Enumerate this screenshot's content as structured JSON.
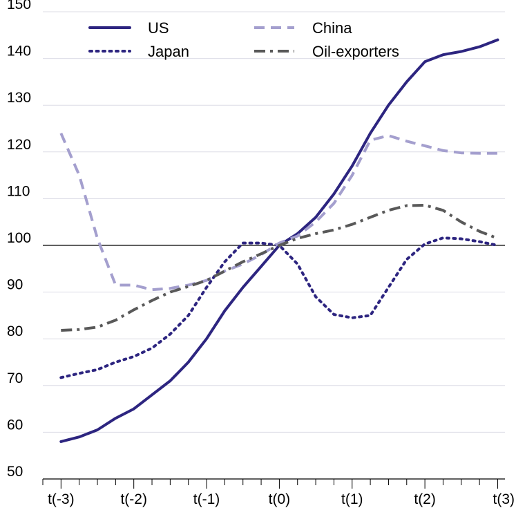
{
  "chart_data": {
    "type": "line",
    "x": [
      -3.0,
      -2.75,
      -2.5,
      -2.25,
      -2.0,
      -1.75,
      -1.5,
      -1.25,
      -1.0,
      -0.75,
      -0.5,
      -0.25,
      0.0,
      0.25,
      0.5,
      0.75,
      1.0,
      1.25,
      1.5,
      1.75,
      2.0,
      2.25,
      2.5,
      2.75,
      3.0
    ],
    "x_tick_values": [
      -3,
      -2,
      -1,
      0,
      1,
      2,
      3
    ],
    "x_tick_labels": [
      "t(-3)",
      "t(-2)",
      "t(-1)",
      "t(0)",
      "t(1)",
      "t(2)",
      "t(3)"
    ],
    "y_ticks": [
      50,
      60,
      70,
      80,
      90,
      100,
      110,
      120,
      130,
      140,
      150
    ],
    "ylim": [
      50,
      150
    ],
    "xlim": [
      -3.25,
      3.1
    ],
    "reference_line": 100,
    "grid": true,
    "legend_position": "top",
    "title": "",
    "xlabel": "",
    "ylabel": "",
    "series": [
      {
        "name": "US",
        "color": "#2d2580",
        "dash": "solid",
        "values": [
          58,
          59,
          60.5,
          63,
          65,
          68,
          71,
          75,
          80,
          86,
          91,
          95.5,
          100,
          102.5,
          106,
          111,
          117,
          124,
          130,
          135,
          139.3,
          140.8,
          141.5,
          142.5,
          144
        ]
      },
      {
        "name": "Japan",
        "color": "#2d2580",
        "dash": "dotted",
        "values": [
          71.7,
          72.6,
          73.4,
          75,
          76.2,
          78,
          81,
          85,
          91,
          96.5,
          100.5,
          100.5,
          100,
          96,
          89,
          85.2,
          84.5,
          85,
          91,
          97,
          100.3,
          101.6,
          101.4,
          100.8,
          100
        ]
      },
      {
        "name": "China",
        "color": "#a49fce",
        "dash": "dashed",
        "values": [
          124,
          115,
          101.5,
          91.5,
          91.5,
          90.5,
          90.8,
          91.5,
          92.5,
          94.5,
          96,
          98,
          100.5,
          102,
          105,
          109,
          115,
          122.5,
          123.5,
          122.3,
          121.3,
          120.3,
          119.8,
          119.7,
          119.7
        ]
      },
      {
        "name": "Oil-exporters",
        "color": "#595959",
        "dash": "dashdot",
        "values": [
          81.8,
          82,
          82.5,
          84,
          86.2,
          88.2,
          90,
          91.2,
          92.5,
          94.5,
          96.5,
          98.2,
          100,
          101.5,
          102.5,
          103.3,
          104.5,
          106,
          107.5,
          108.5,
          108.6,
          107.5,
          105,
          103,
          101.5
        ]
      }
    ]
  }
}
